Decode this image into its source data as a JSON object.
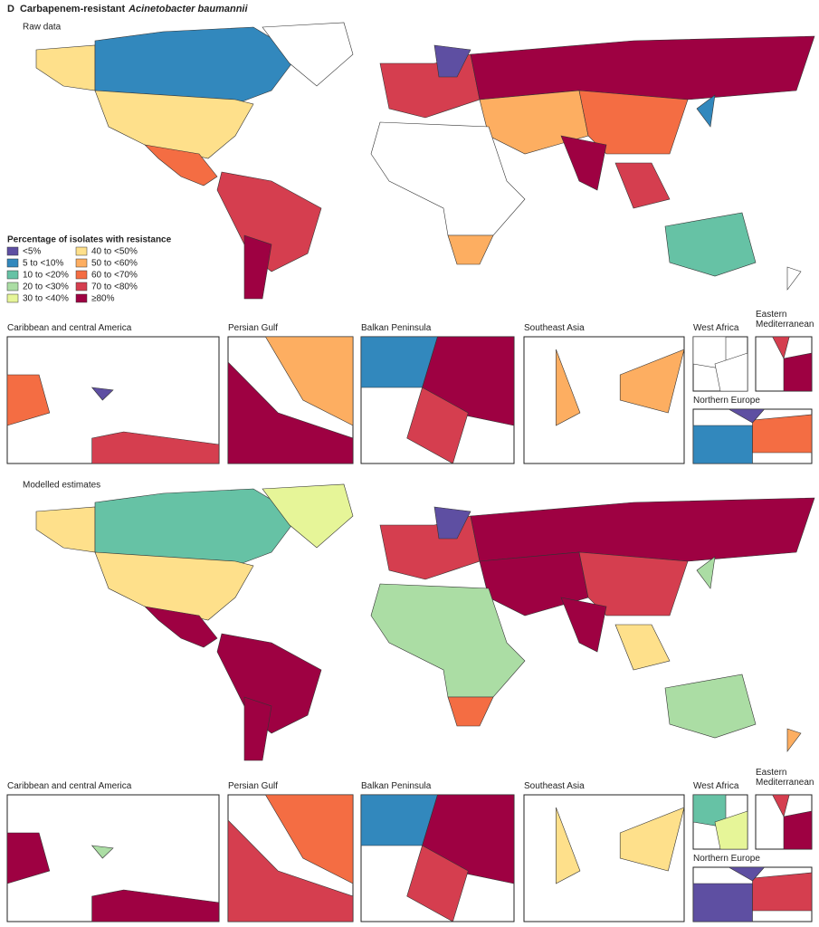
{
  "header": {
    "panel": "D",
    "title_prefix": "Carbapenem-resistant",
    "title_organism": "Acinetobacter baumannii"
  },
  "legend": {
    "title": "Percentage of isolates with resistance",
    "items": [
      {
        "label": "<5%",
        "color": "#5e4fa2"
      },
      {
        "label": "5 to <10%",
        "color": "#3288bd"
      },
      {
        "label": "10 to <20%",
        "color": "#66c2a5"
      },
      {
        "label": "20 to <30%",
        "color": "#abdda4"
      },
      {
        "label": "30 to <40%",
        "color": "#e6f598"
      },
      {
        "label": "40 to <50%",
        "color": "#fee08b"
      },
      {
        "label": "50 to <60%",
        "color": "#fdae61"
      },
      {
        "label": "60 to <70%",
        "color": "#f46d43"
      },
      {
        "label": "70 to <80%",
        "color": "#d53e4f"
      },
      {
        "label": "≥80%",
        "color": "#9e0142"
      }
    ]
  },
  "maps": [
    {
      "title": "Raw data",
      "insets": [
        "Caribbean and central America",
        "Persian Gulf",
        "Balkan Peninsula",
        "Southeast Asia",
        "West Africa",
        "Eastern Mediterranean",
        "Northern Europe"
      ]
    },
    {
      "title": "Modelled estimates",
      "insets": [
        "Caribbean and central America",
        "Persian Gulf",
        "Balkan Peninsula",
        "Southeast Asia",
        "West Africa",
        "Eastern Mediterranean",
        "Northern Europe"
      ]
    }
  ]
}
